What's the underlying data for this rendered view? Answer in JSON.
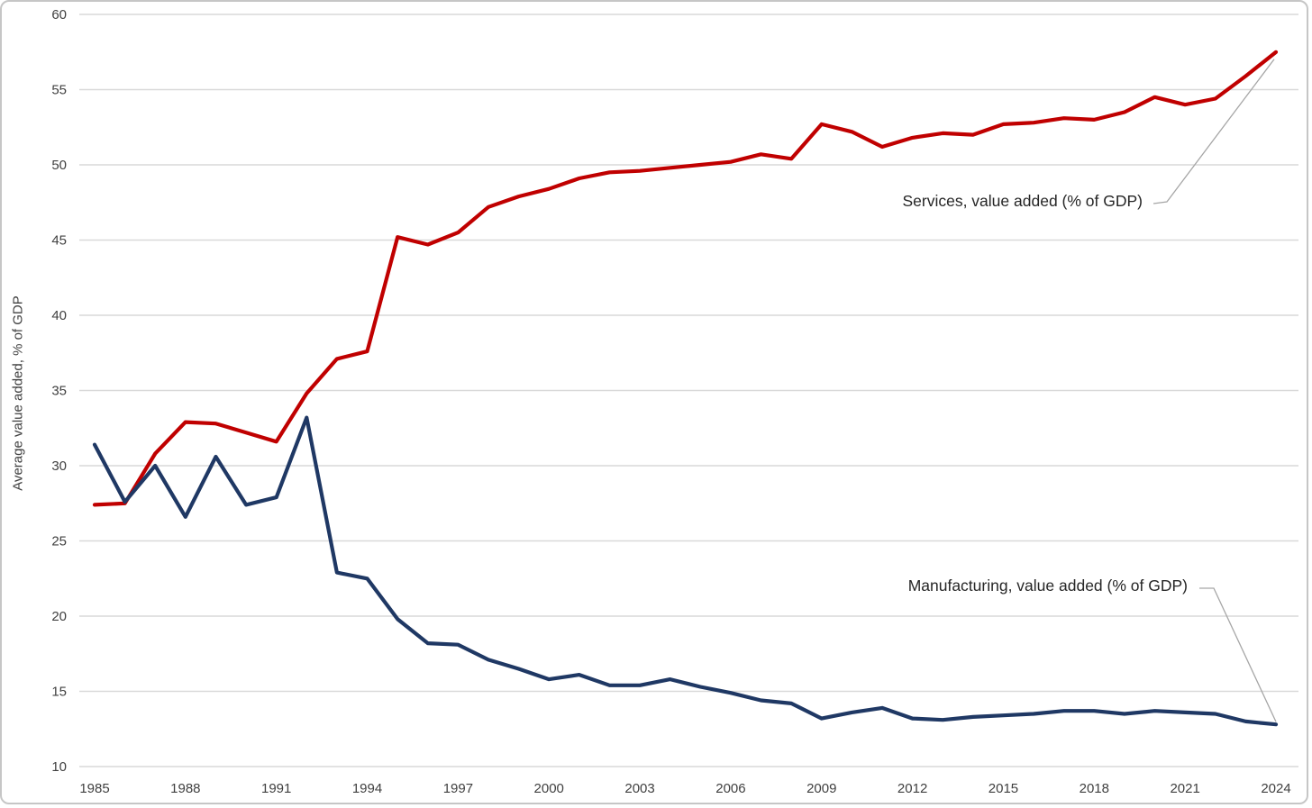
{
  "chart_data": {
    "type": "line",
    "title": "",
    "ylabel": "Average value added, % of GDP",
    "xlabel": "",
    "xlim": [
      1985,
      2024
    ],
    "ylim": [
      10,
      60
    ],
    "y_ticks": [
      10,
      15,
      20,
      25,
      30,
      35,
      40,
      45,
      50,
      55,
      60
    ],
    "x_tick_labels": [
      "1985",
      "1988",
      "1991",
      "1994",
      "1997",
      "2000",
      "2003",
      "2006",
      "2009",
      "2012",
      "2015",
      "2018",
      "2021",
      "2024"
    ],
    "x_tick_years": [
      1985,
      1988,
      1991,
      1994,
      1997,
      2000,
      2003,
      2006,
      2009,
      2012,
      2015,
      2018,
      2021,
      2024
    ],
    "grid": "horizontal",
    "legend_position": "callout-labels-on-plot",
    "x": [
      1985,
      1986,
      1987,
      1988,
      1989,
      1990,
      1991,
      1992,
      1993,
      1994,
      1995,
      1996,
      1997,
      1998,
      1999,
      2000,
      2001,
      2002,
      2003,
      2004,
      2005,
      2006,
      2007,
      2008,
      2009,
      2010,
      2011,
      2012,
      2013,
      2014,
      2015,
      2016,
      2017,
      2018,
      2019,
      2020,
      2021,
      2022,
      2023,
      2024
    ],
    "series": [
      {
        "key": "services",
        "name": "Services, value added (% of GDP)",
        "color": "#C00000",
        "values": [
          27.4,
          27.5,
          30.8,
          32.9,
          32.8,
          32.2,
          31.6,
          34.8,
          37.1,
          37.6,
          45.2,
          44.7,
          45.5,
          47.2,
          47.9,
          48.4,
          49.1,
          49.5,
          49.6,
          49.8,
          50.0,
          50.2,
          50.7,
          50.4,
          52.7,
          52.2,
          51.2,
          51.8,
          52.1,
          52.0,
          52.7,
          52.8,
          53.1,
          53.0,
          53.5,
          54.5,
          54.0,
          54.4,
          55.9,
          57.5
        ]
      },
      {
        "key": "manufacturing",
        "name": "Manufacturing, value added (% of GDP)",
        "color": "#1F3864",
        "values": [
          31.4,
          27.6,
          30.0,
          26.6,
          30.6,
          27.4,
          27.9,
          33.2,
          22.9,
          22.5,
          19.8,
          18.2,
          18.1,
          17.1,
          16.5,
          15.8,
          16.1,
          15.4,
          15.4,
          15.8,
          15.3,
          14.9,
          14.4,
          14.2,
          13.2,
          13.6,
          13.9,
          13.2,
          13.1,
          13.3,
          13.4,
          13.5,
          13.7,
          13.7,
          13.5,
          13.7,
          13.6,
          13.5,
          13.0,
          12.8
        ]
      }
    ]
  },
  "colors": {
    "background": "#FFFFFF",
    "gridline": "#D9D9D9",
    "axis_text": "#404040",
    "label_text": "#262626",
    "leader_line": "#A6A6A6",
    "card_border": "#C6C6C6",
    "services": "#C00000",
    "manufacturing": "#1F3864"
  }
}
